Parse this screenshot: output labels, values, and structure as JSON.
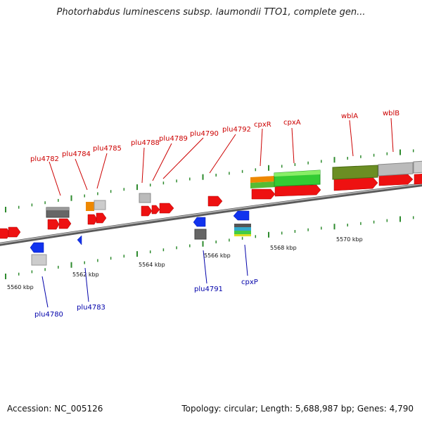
{
  "title": "Photorhabdus luminescens subsp. laumondii TTO1, complete gen...",
  "footer": {
    "accession": "Accession: NC_005126",
    "summary": "Topology: circular; Length: 5,688,987 bp; Genes: 4,790"
  },
  "colors": {
    "forward_label": "#cc0000",
    "reverse_label": "#0000aa",
    "cds": "#ee1111",
    "reverse_cds": "#1133ee",
    "backbone": "#888888",
    "tick": "#2e8b2e",
    "gene_gray": "#bbbbbb",
    "gene_dark": "#666666",
    "gene_orange": "#ee8800",
    "gene_green": "#33cc33",
    "gene_olive": "#6b8e23"
  },
  "scale_labels": [
    "5560 kbp",
    "5562 kbp",
    "5564 kbp",
    "5566 kbp",
    "5568 kbp",
    "5570 kbp"
  ],
  "forward_genes": [
    "plu4782",
    "plu4784",
    "plu4785",
    "plu4788",
    "plu4789",
    "plu4790",
    "plu4792",
    "cpxR",
    "cpxA",
    "wblA",
    "wblB"
  ],
  "reverse_genes": [
    "plu4780",
    "plu4783",
    "plu4791",
    "cpxP"
  ]
}
